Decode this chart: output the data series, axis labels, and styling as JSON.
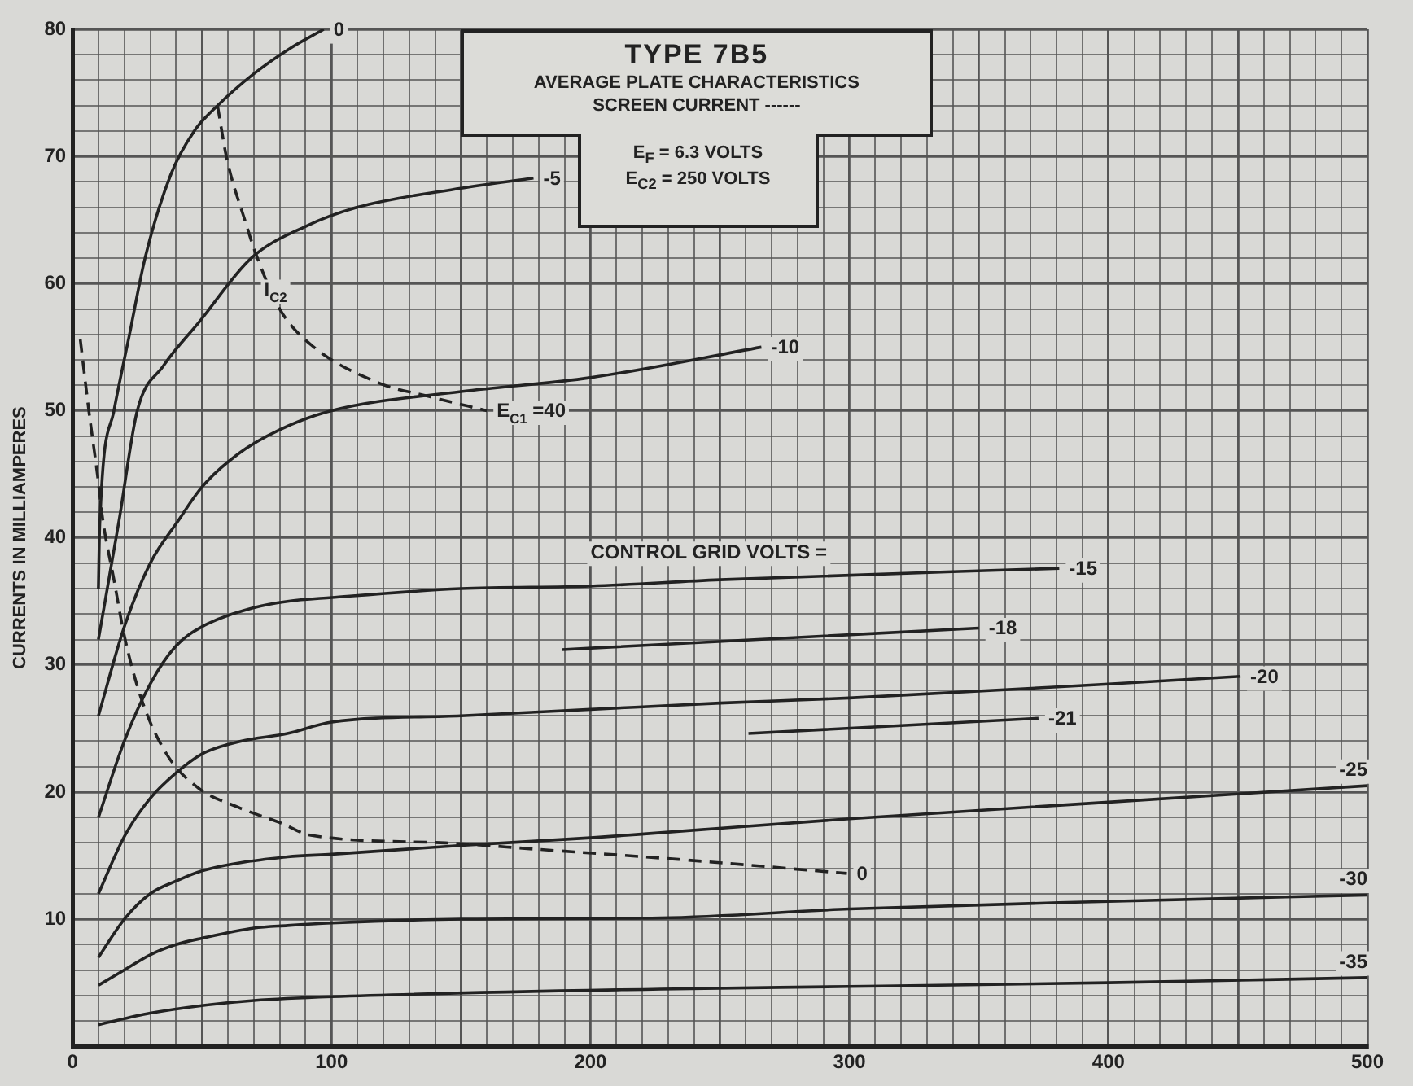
{
  "chart_data": {
    "type": "line",
    "title": "TYPE 7B5",
    "subtitle": "AVERAGE PLATE CHARACTERISTICS",
    "ylabel": "CURRENTS IN MILLIAMPERES",
    "annotations": [
      "SCREEN CURRENT ------",
      "E$_{F}$ = 6.3 VOLTS",
      "E$_{C2}$ = 250 VOLTS",
      "CONTROL GRID VOLTS =",
      {
        "text": "I$_{C2}$",
        "x": 74,
        "y": 59
      }
    ],
    "xlim": [
      0,
      500
    ],
    "ylim": [
      0,
      80
    ],
    "xticks": [
      0,
      {
        "value": 10,
        "label": null
      },
      {
        "value": 20,
        "label": null
      },
      {
        "value": 30,
        "label": null
      },
      {
        "value": 40,
        "label": null
      },
      {
        "value": 50,
        "label": null
      },
      {
        "value": 60,
        "label": null
      },
      {
        "value": 70,
        "label": null
      },
      {
        "value": 80,
        "label": null
      },
      {
        "value": 90,
        "label": null
      },
      100,
      {
        "value": 110,
        "label": null
      },
      {
        "value": 120,
        "label": null
      },
      {
        "value": 130,
        "label": null
      },
      {
        "value": 140,
        "label": null
      },
      {
        "value": 150,
        "label": null
      },
      {
        "value": 160,
        "label": null
      },
      {
        "value": 170,
        "label": null
      },
      {
        "value": 180,
        "label": null
      },
      {
        "value": 190,
        "label": null
      },
      200,
      {
        "value": 210,
        "label": null
      },
      {
        "value": 220,
        "label": null
      },
      {
        "value": 230,
        "label": null
      },
      {
        "value": 240,
        "label": null
      },
      {
        "value": 250,
        "label": null
      },
      {
        "value": 260,
        "label": null
      },
      {
        "value": 270,
        "label": null
      },
      {
        "value": 280,
        "label": null
      },
      {
        "value": 290,
        "label": null
      },
      300,
      {
        "value": 310,
        "label": null
      },
      {
        "value": 320,
        "label": null
      },
      {
        "value": 330,
        "label": null
      },
      {
        "value": 340,
        "label": null
      },
      {
        "value": 350,
        "label": null
      },
      {
        "value": 360,
        "label": null
      },
      {
        "value": 370,
        "label": null
      },
      {
        "value": 380,
        "label": null
      },
      {
        "value": 390,
        "label": null
      },
      400,
      {
        "value": 410,
        "label": null
      },
      {
        "value": 420,
        "label": null
      },
      {
        "value": 430,
        "label": null
      },
      {
        "value": 440,
        "label": null
      },
      {
        "value": 450,
        "label": null
      },
      {
        "value": 460,
        "label": null
      },
      {
        "value": 470,
        "label": null
      },
      {
        "value": 480,
        "label": null
      },
      {
        "value": 490,
        "label": null
      },
      500
    ],
    "yticks": [
      {
        "value": 0,
        "label": null
      },
      {
        "value": 2,
        "label": null
      },
      {
        "value": 4,
        "label": null
      },
      {
        "value": 6,
        "label": null
      },
      {
        "value": 8,
        "label": null
      },
      10,
      {
        "value": 12,
        "label": null
      },
      {
        "value": 14,
        "label": null
      },
      {
        "value": 16,
        "label": null
      },
      {
        "value": 18,
        "label": null
      },
      20,
      {
        "value": 22,
        "label": null
      },
      {
        "value": 24,
        "label": null
      },
      {
        "value": 26,
        "label": null
      },
      {
        "value": 28,
        "label": null
      },
      30,
      {
        "value": 32,
        "label": null
      },
      {
        "value": 34,
        "label": null
      },
      {
        "value": 36,
        "label": null
      },
      {
        "value": 38,
        "label": null
      },
      40,
      {
        "value": 42,
        "label": null
      },
      {
        "value": 44,
        "label": null
      },
      {
        "value": 46,
        "label": null
      },
      {
        "value": 48,
        "label": null
      },
      50,
      {
        "value": 52,
        "label": null
      },
      {
        "value": 54,
        "label": null
      },
      {
        "value": 56,
        "label": null
      },
      {
        "value": 58,
        "label": null
      },
      60,
      {
        "value": 62,
        "label": null
      },
      {
        "value": 64,
        "label": null
      },
      {
        "value": 66,
        "label": null
      },
      {
        "value": 68,
        "label": null
      },
      70,
      {
        "value": 72,
        "label": null
      },
      {
        "value": 74,
        "label": null
      },
      {
        "value": 76,
        "label": null
      },
      {
        "value": 78,
        "label": null
      },
      80
    ],
    "grid": true,
    "legend": false,
    "marker": "none",
    "series": [
      {
        "name": "0",
        "color": "#222222",
        "line_style": "solid",
        "x": [
          10,
          10.5,
          16,
          22,
          28,
          38,
          47,
          56,
          70,
          84,
          97
        ],
        "values": [
          36,
          41,
          50,
          56,
          62,
          68.6,
          72,
          74,
          76.5,
          78.5,
          80
        ]
      },
      {
        "name": "-5",
        "color": "#222222",
        "line_style": "solid",
        "x": [
          10,
          18,
          25,
          35,
          49,
          69,
          90,
          110,
          150,
          178
        ],
        "values": [
          32,
          41.4,
          50,
          53.5,
          57,
          62,
          64.5,
          66,
          67.5,
          68.3
        ]
      },
      {
        "name": "-10",
        "color": "#222222",
        "line_style": "solid",
        "x": [
          10,
          20,
          30,
          41,
          50,
          64,
          80,
          100,
          150,
          200,
          266
        ],
        "values": [
          26,
          33,
          38,
          41.4,
          44,
          46.6,
          48.5,
          50,
          51.5,
          52.6,
          55
        ]
      },
      {
        "name": "-15",
        "color": "#222222",
        "line_style": "solid",
        "x": [
          10,
          20,
          30,
          40,
          50,
          70,
          83,
          100,
          150,
          200,
          250,
          381
        ],
        "values": [
          18,
          24,
          28.5,
          31.5,
          33,
          34.5,
          35,
          35.3,
          36,
          36.2,
          36.7,
          37.6
        ]
      },
      {
        "name": "-18",
        "color": "#222222",
        "line_style": "solid",
        "x": [
          189,
          350
        ],
        "values": [
          31.2,
          32.9
        ]
      },
      {
        "name": "-20",
        "color": "#222222",
        "line_style": "solid",
        "x": [
          10,
          20,
          30,
          40,
          50,
          65,
          83,
          100,
          150,
          200,
          250,
          300,
          400,
          451
        ],
        "values": [
          12,
          16.5,
          19.5,
          21.5,
          23,
          24,
          24.6,
          25.5,
          26,
          26.5,
          27,
          27.4,
          28.5,
          29.1
        ]
      },
      {
        "name": "-21",
        "color": "#222222",
        "line_style": "solid",
        "x": [
          261,
          373
        ],
        "values": [
          24.6,
          25.8
        ]
      },
      {
        "name": "-25",
        "color": "#222222",
        "line_style": "solid",
        "x": [
          10,
          20,
          30,
          40,
          50,
          83,
          100,
          150,
          200,
          227,
          300,
          400,
          500
        ],
        "values": [
          7,
          10,
          12,
          13,
          13.8,
          14.9,
          15.1,
          15.8,
          16.4,
          16.8,
          17.9,
          19.2,
          20.5
        ]
      },
      {
        "name": "-30",
        "color": "#222222",
        "line_style": "solid",
        "x": [
          10,
          20,
          30,
          40,
          50,
          70,
          83,
          100,
          150,
          227,
          300,
          400,
          500
        ],
        "values": [
          4.8,
          6,
          7.2,
          8,
          8.5,
          9.3,
          9.5,
          9.7,
          10,
          10.1,
          10.8,
          11.4,
          11.9
        ]
      },
      {
        "name": "-35",
        "color": "#222222",
        "line_style": "solid",
        "x": [
          10,
          30,
          50,
          70,
          100,
          227,
          300,
          400,
          500
        ],
        "values": [
          1.7,
          2.6,
          3.2,
          3.6,
          3.9,
          4.5,
          4.7,
          5,
          5.4
        ]
      },
      {
        "name": "E$_{C1}$ =40",
        "color": "#222222",
        "line_style": "dashed",
        "x": [
          56,
          59.5,
          67,
          70.5,
          80,
          92,
          118,
          138,
          160
        ],
        "values": [
          74,
          69.9,
          64.7,
          62.5,
          58,
          55.2,
          52.2,
          51.1,
          50
        ]
      },
      {
        "name": "0",
        "color": "#222222",
        "line_style": "dashed",
        "x": [
          3,
          6.3,
          9.6,
          11.7,
          16,
          20,
          26.8,
          36.6,
          48.7,
          64,
          80,
          92,
          144,
          179,
          234,
          299
        ],
        "values": [
          55.6,
          50,
          45,
          41.4,
          36.7,
          32.3,
          27.2,
          22.9,
          20.3,
          18.8,
          17.6,
          16.6,
          16,
          15.5,
          14.7,
          13.6
        ]
      }
    ]
  }
}
